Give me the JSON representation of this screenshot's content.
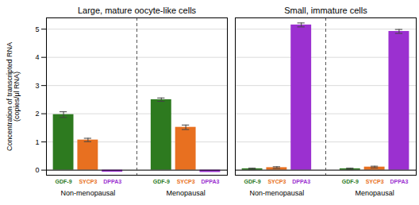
{
  "chart_data": [
    {
      "type": "bar",
      "title": "Large, mature oocyte-like cells",
      "ylabel": "Concentration of transcripted RNA (copies/μl RNA)",
      "categories": [
        "Non-menopausal",
        "Menopausal"
      ],
      "series": [
        {
          "name": "GDF-9",
          "color": "#2d7a1f",
          "values": [
            1.97,
            2.5
          ],
          "errors": [
            0.1,
            0.06
          ]
        },
        {
          "name": "SYCP3",
          "color": "#e87020",
          "values": [
            1.07,
            1.52
          ],
          "errors": [
            0.06,
            0.08
          ]
        },
        {
          "name": "DPPA3",
          "color": "#9b30d0",
          "values": [
            -0.07,
            -0.08
          ],
          "errors": [
            null,
            null
          ]
        }
      ],
      "ylim": [
        -0.18,
        5.4
      ],
      "yticks": [
        0,
        1,
        2,
        3,
        4,
        5
      ],
      "grid": true
    },
    {
      "type": "bar",
      "title": "Small, immature cells",
      "categories": [
        "Non-menopausal",
        "Menopausal"
      ],
      "series": [
        {
          "name": "GDF-9",
          "color": "#2d7a1f",
          "values": [
            0.05,
            0.05
          ],
          "errors": [
            0.02,
            0.02
          ]
        },
        {
          "name": "SYCP3",
          "color": "#e87020",
          "values": [
            0.09,
            0.11
          ],
          "errors": [
            0.03,
            0.03
          ]
        },
        {
          "name": "DPPA3",
          "color": "#9b30d0",
          "values": [
            5.15,
            4.92
          ],
          "errors": [
            0.07,
            0.07
          ]
        }
      ],
      "ylim": [
        -0.18,
        5.4
      ],
      "yticks": [
        0,
        1,
        2,
        3,
        4,
        5
      ],
      "grid": true,
      "tick_labels": "x"
    }
  ]
}
